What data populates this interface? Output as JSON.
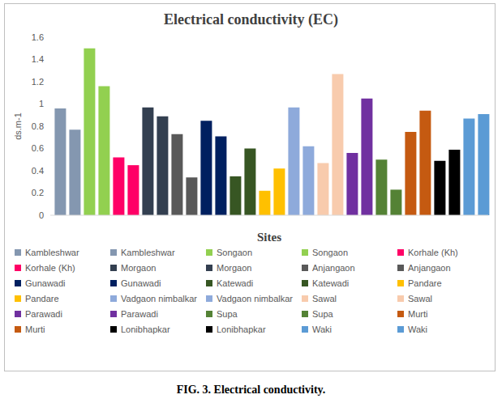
{
  "chart_data": {
    "type": "bar",
    "title": "Electrical conductivity (EC)",
    "caption": "FIG. 3. Electrical conductivity.",
    "x_label": "Sites",
    "y_label": "ds.m-1",
    "categories": [
      null
    ],
    "series": [
      {
        "name": "Kambleshwar",
        "color": "#8497b0",
        "values": [
          0.96
        ]
      },
      {
        "name": "Kambleshwar",
        "color": "#8497b0",
        "values": [
          0.77
        ]
      },
      {
        "name": "Songaon",
        "color": "#92d050",
        "values": [
          1.5
        ]
      },
      {
        "name": "Songaon",
        "color": "#92d050",
        "values": [
          1.16
        ]
      },
      {
        "name": "Korhale (Kh)",
        "color": "#ff0066",
        "values": [
          0.52
        ]
      },
      {
        "name": "Korhale (Kh)",
        "color": "#ff0066",
        "values": [
          0.45
        ]
      },
      {
        "name": "Morgaon",
        "color": "#333f50",
        "values": [
          0.97
        ]
      },
      {
        "name": "Morgaon",
        "color": "#333f50",
        "values": [
          0.89
        ]
      },
      {
        "name": "Anjangaon",
        "color": "#595959",
        "values": [
          0.73
        ]
      },
      {
        "name": "Anjangaon",
        "color": "#595959",
        "values": [
          0.34
        ]
      },
      {
        "name": "Gunawadi",
        "color": "#002060",
        "values": [
          0.85
        ]
      },
      {
        "name": "Gunawadi",
        "color": "#002060",
        "values": [
          0.71
        ]
      },
      {
        "name": "Katewadi",
        "color": "#375623",
        "values": [
          0.35
        ]
      },
      {
        "name": "Katewadi",
        "color": "#375623",
        "values": [
          0.6
        ]
      },
      {
        "name": "Pandare",
        "color": "#ffc000",
        "values": [
          0.22
        ]
      },
      {
        "name": "Pandare",
        "color": "#ffc000",
        "values": [
          0.42
        ]
      },
      {
        "name": "Vadgaon nimbalkar",
        "color": "#8eaadb",
        "values": [
          0.97
        ]
      },
      {
        "name": "Vadgaon nimbalkar",
        "color": "#8eaadb",
        "values": [
          0.62
        ]
      },
      {
        "name": "Sawal",
        "color": "#f8cbad",
        "values": [
          0.47
        ]
      },
      {
        "name": "Sawal",
        "color": "#f8cbad",
        "values": [
          1.27
        ]
      },
      {
        "name": "Parawadi",
        "color": "#7030a0",
        "values": [
          0.56
        ]
      },
      {
        "name": "Parawadi",
        "color": "#7030a0",
        "values": [
          1.05
        ]
      },
      {
        "name": "Supa",
        "color": "#548235",
        "values": [
          0.5
        ]
      },
      {
        "name": "Supa",
        "color": "#548235",
        "values": [
          0.23
        ]
      },
      {
        "name": "Murti",
        "color": "#c55a11",
        "values": [
          0.75
        ]
      },
      {
        "name": "Murti",
        "color": "#c55a11",
        "values": [
          0.94
        ]
      },
      {
        "name": "Lonibhapkar",
        "color": "#000000",
        "values": [
          0.49
        ]
      },
      {
        "name": "Lonibhapkar",
        "color": "#000000",
        "values": [
          0.59
        ]
      },
      {
        "name": "Waki",
        "color": "#5b9bd5",
        "values": [
          0.87
        ]
      },
      {
        "name": "Waki",
        "color": "#5b9bd5",
        "values": [
          0.91
        ]
      }
    ],
    "ylim": [
      0,
      1.6
    ],
    "yticks": [
      0,
      0.2,
      0.4,
      0.6,
      0.8,
      1,
      1.2,
      1.4,
      1.6
    ],
    "grid": false,
    "legend": "bottom",
    "tick_labels": "y"
  }
}
